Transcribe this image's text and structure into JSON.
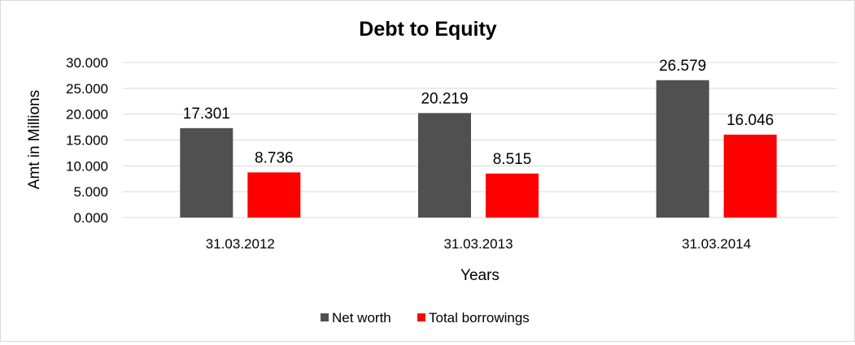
{
  "chart_data": {
    "type": "bar",
    "title": "Debt to Equity",
    "xlabel": "Years",
    "ylabel": "Amt in Millions",
    "categories": [
      "31.03.2012",
      "31.03.2013",
      "31.03.2014"
    ],
    "series": [
      {
        "name": "Net worth",
        "values": [
          17.301,
          20.219,
          26.579
        ],
        "labels": [
          "17.301",
          "20.219",
          "26.579"
        ],
        "color": "#505050"
      },
      {
        "name": "Total borrowings",
        "values": [
          8.736,
          8.515,
          16.046
        ],
        "labels": [
          "8.736",
          "8.515",
          "16.046"
        ],
        "color": "#ff0000"
      }
    ],
    "ylim": [
      0,
      30
    ],
    "yticks": [
      0,
      5,
      10,
      15,
      20,
      25,
      30
    ],
    "ytick_labels": [
      "0.000",
      "5.000",
      "10.000",
      "15.000",
      "20.000",
      "25.000",
      "30.000"
    ],
    "grid": true,
    "legend_position": "bottom"
  }
}
